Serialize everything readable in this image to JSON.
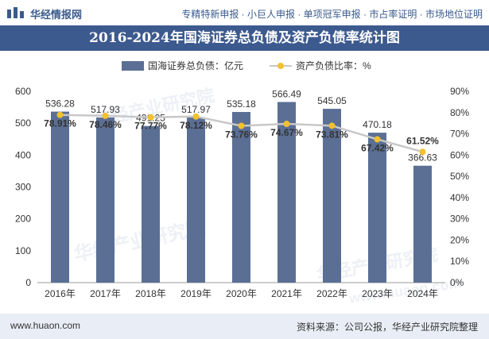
{
  "header": {
    "brand": "华经情报网",
    "slogan": "专精特新申报 · 小巨人申报 · 单项冠军申报 · 市占率证明 · 市场地位证明"
  },
  "footer": {
    "site": "www.huaon.com",
    "source": "资料来源：公司公报，华经产业研究院整理"
  },
  "watermarks": [
    "华经产业研究院",
    "华经产业研究院",
    "华经产业研究院",
    "www.huaon.com"
  ],
  "icons": [
    "logo-icon"
  ],
  "colors": {
    "bar": "#5b6f95",
    "line": "#c8c8c8",
    "marker": "#f2c12e",
    "title_bg": "#3d5a8f"
  },
  "chart_data": {
    "type": "bar",
    "title": "2016-2024年国海证券总负债及资产负债率统计图",
    "categories": [
      "2016年",
      "2017年",
      "2018年",
      "2019年",
      "2020年",
      "2021年",
      "2022年",
      "2023年",
      "2024年"
    ],
    "series": [
      {
        "name": "国海证券总负债：亿元",
        "type": "bar",
        "axis": "left",
        "values": [
          536.28,
          517.93,
          491.25,
          517.97,
          535.18,
          566.49,
          545.05,
          470.18,
          366.63
        ],
        "labels": [
          "536.28",
          "517.93",
          "491.25",
          "517.97",
          "535.18",
          "566.49",
          "545.05",
          "470.18",
          "366.63"
        ]
      },
      {
        "name": "资产负债比率：%",
        "type": "line",
        "axis": "right",
        "values": [
          78.91,
          78.46,
          77.77,
          78.12,
          73.76,
          74.67,
          73.81,
          67.42,
          61.52
        ],
        "labels": [
          "78.91%",
          "78.46%",
          "77.77%",
          "78.12%",
          "73.76%",
          "74.67%",
          "73.81%",
          "67.42%",
          "61.52%"
        ]
      }
    ],
    "y_left": {
      "min": 0,
      "max": 600,
      "ticks": [
        "0",
        "100",
        "200",
        "300",
        "400",
        "500",
        "600"
      ]
    },
    "y_right": {
      "min": 0,
      "max": 90,
      "ticks": [
        "0%",
        "10%",
        "20%",
        "30%",
        "40%",
        "50%",
        "60%",
        "70%",
        "80%",
        "90%"
      ]
    },
    "grid": false,
    "legend_position": "top"
  }
}
